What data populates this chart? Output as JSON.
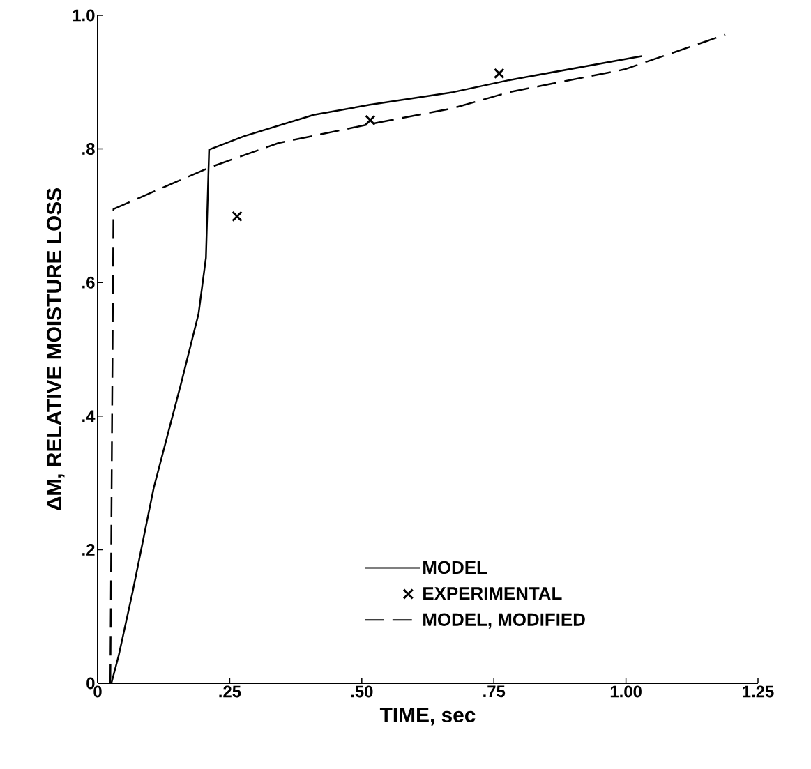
{
  "chart_data": {
    "type": "line",
    "xlabel": "TIME, sec",
    "ylabel": "ΔM, RELATIVE MOISTURE LOSS",
    "xlim": [
      0,
      1.25
    ],
    "ylim": [
      0,
      1.0
    ],
    "xticks": [
      0,
      {
        "value": 0.25,
        "label": ".25"
      },
      {
        "value": 0.5,
        "label": ".50"
      },
      {
        "value": 0.75,
        "label": ".75"
      },
      {
        "value": 1.0,
        "label": "1.00"
      },
      1.25
    ],
    "yticks": [
      0,
      {
        "value": 0.2,
        "label": ".2"
      },
      {
        "value": 0.4,
        "label": ".4"
      },
      {
        "value": 0.6,
        "label": ".6"
      },
      {
        "value": 0.8,
        "label": ".8"
      },
      {
        "value": 1.0,
        "label": "1.0"
      }
    ],
    "legend": "bottom right",
    "series": [
      {
        "name": "MODEL",
        "type": "line",
        "line_style": "solid",
        "color": "#000000",
        "x": [
          0.026,
          0.04,
          0.066,
          0.106,
          0.158,
          0.191,
          0.205,
          0.211,
          0.277,
          0.409,
          0.515,
          0.673,
          0.779,
          1.03
        ],
        "values": [
          0,
          0.042,
          0.136,
          0.292,
          0.449,
          0.553,
          0.637,
          0.799,
          0.819,
          0.851,
          0.866,
          0.885,
          0.903,
          0.939
        ]
      },
      {
        "name": "EXPERIMENTAL",
        "type": "scatter",
        "marker": "cross",
        "color": "#000000",
        "x": [
          0.264,
          0.516,
          0.76
        ],
        "values": [
          0.699,
          0.843,
          0.913
        ]
      },
      {
        "name": "MODEL, MODIFIED",
        "type": "line",
        "line_style": "dashed",
        "color": "#000000",
        "x": [
          0.024,
          0.03,
          0.211,
          0.343,
          0.515,
          0.673,
          0.779,
          0.997,
          1.188
        ],
        "values": [
          0,
          0.71,
          0.772,
          0.809,
          0.837,
          0.861,
          0.885,
          0.919,
          0.971
        ]
      }
    ]
  }
}
